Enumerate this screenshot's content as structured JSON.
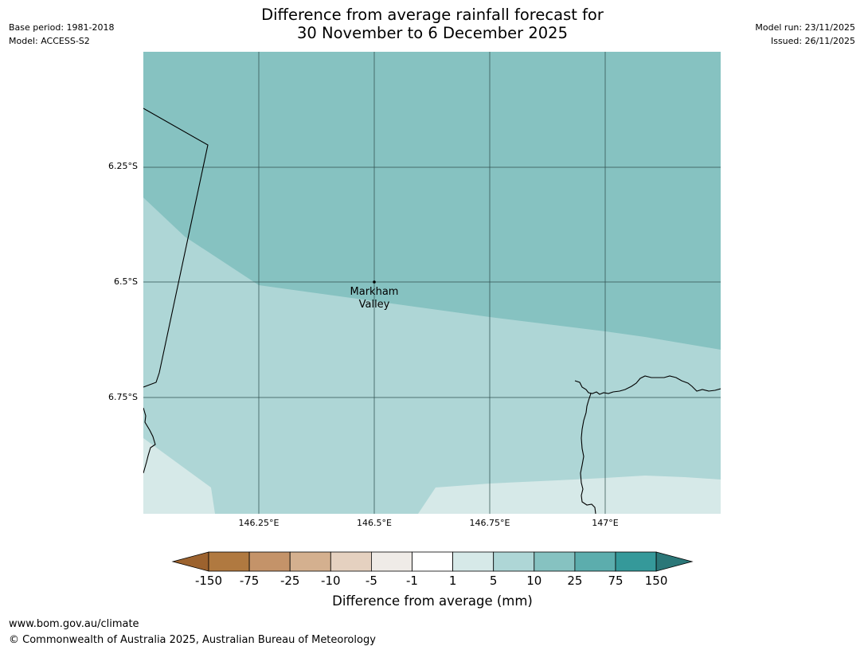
{
  "title": {
    "line1": "Difference from average rainfall forecast for",
    "line2": "30 November to 6 December 2025"
  },
  "meta_left": {
    "base_period": "Base period: 1981-2018",
    "model": "Model: ACCESS-S2"
  },
  "meta_right": {
    "model_run": "Model run: 23/11/2025",
    "issued": "Issued: 26/11/2025"
  },
  "map": {
    "lat_labels": [
      "6.25°S",
      "6.5°S",
      "6.75°S"
    ],
    "lon_labels": [
      "146.25°E",
      "146.5°E",
      "146.75°E",
      "147°E"
    ],
    "place": {
      "line1": "Markham",
      "line2": "Valley"
    }
  },
  "colorbar": {
    "title": "Difference from average (mm)",
    "ticks": [
      "-150",
      "-75",
      "-25",
      "-10",
      "-5",
      "-1",
      "1",
      "5",
      "10",
      "25",
      "75",
      "150"
    ],
    "colors": [
      "#9c622e",
      "#b07940",
      "#c49369",
      "#d4b08f",
      "#e5d1c0",
      "#efebe7",
      "#ffffff",
      "#d6e9e8",
      "#aed6d6",
      "#86c2c1",
      "#5cadad",
      "#35999a",
      "#2b7778"
    ]
  },
  "footer": {
    "url": "www.bom.gov.au/climate",
    "copyright": "© Commonwealth of Australia 2025, Australian Bureau of Meteorology"
  }
}
